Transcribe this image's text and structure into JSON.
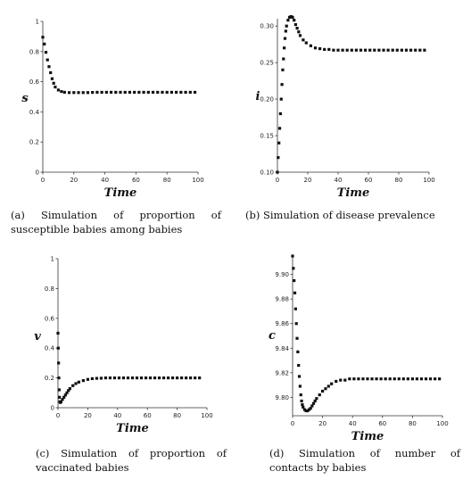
{
  "chart_data": [
    {
      "type": "scatter",
      "caption": "(a) Simulation of proportion of susceptible babies among babies",
      "xlabel": "Time",
      "ylabel": "s",
      "xlim": [
        0,
        100
      ],
      "ylim": [
        0,
        1
      ],
      "xticks": [
        "0",
        "20",
        "40",
        "60",
        "80",
        "100"
      ],
      "yticks": [
        "0",
        "0.2",
        "0.4",
        "0.6",
        "0.8",
        "1"
      ],
      "color": "#111111",
      "series": [
        {
          "x": [
            0,
            1,
            2,
            3,
            4,
            5,
            6,
            7,
            8,
            10,
            12,
            14,
            17,
            20,
            23,
            26,
            29,
            32,
            35,
            38,
            41,
            44,
            47,
            50,
            53,
            56,
            59,
            62,
            65,
            68,
            71,
            74,
            77,
            80,
            83,
            86,
            89,
            92,
            95,
            98
          ],
          "values": [
            0.895,
            0.85,
            0.795,
            0.745,
            0.7,
            0.66,
            0.62,
            0.59,
            0.565,
            0.545,
            0.535,
            0.53,
            0.528,
            0.528,
            0.528,
            0.528,
            0.528,
            0.529,
            0.53,
            0.53,
            0.53,
            0.53,
            0.53,
            0.53,
            0.53,
            0.53,
            0.53,
            0.53,
            0.53,
            0.53,
            0.53,
            0.53,
            0.53,
            0.53,
            0.53,
            0.53,
            0.53,
            0.53,
            0.53,
            0.53
          ]
        }
      ]
    },
    {
      "type": "scatter",
      "caption": "(b) Simulation of disease prevalence",
      "xlabel": "Time",
      "ylabel": "i",
      "xlim": [
        0,
        100
      ],
      "ylim": [
        0.1,
        0.31
      ],
      "xticks": [
        "0",
        "20",
        "40",
        "60",
        "80",
        "100"
      ],
      "yticks": [
        "0.10",
        "0.15",
        "0.20",
        "0.25",
        "0.30"
      ],
      "ytick_values": [
        0.1,
        0.15,
        0.2,
        0.25,
        0.3
      ],
      "color": "#111111",
      "series": [
        {
          "x": [
            0,
            0.5,
            1,
            1.5,
            2,
            2.5,
            3,
            3.5,
            4,
            4.5,
            5,
            5.5,
            6,
            7,
            8,
            9,
            10,
            11,
            12,
            13,
            14,
            15,
            17,
            19,
            22,
            25,
            28,
            31,
            34,
            37,
            40,
            43,
            46,
            49,
            52,
            55,
            58,
            61,
            64,
            67,
            70,
            73,
            76,
            79,
            82,
            85,
            88,
            91,
            94,
            97
          ],
          "values": [
            0.1,
            0.12,
            0.14,
            0.16,
            0.18,
            0.2,
            0.22,
            0.24,
            0.255,
            0.27,
            0.283,
            0.293,
            0.3,
            0.308,
            0.312,
            0.313,
            0.312,
            0.308,
            0.302,
            0.297,
            0.292,
            0.287,
            0.281,
            0.277,
            0.273,
            0.27,
            0.269,
            0.268,
            0.268,
            0.267,
            0.267,
            0.267,
            0.267,
            0.267,
            0.267,
            0.267,
            0.267,
            0.267,
            0.267,
            0.267,
            0.267,
            0.267,
            0.267,
            0.267,
            0.267,
            0.267,
            0.267,
            0.267,
            0.267,
            0.267
          ]
        }
      ]
    },
    {
      "type": "scatter",
      "caption": "(c) Simulation of proportion of vaccinated babies",
      "xlabel": "Time",
      "ylabel": "v",
      "xlim": [
        0,
        100
      ],
      "ylim": [
        0,
        1
      ],
      "xticks": [
        "0",
        "20",
        "40",
        "60",
        "80",
        "100"
      ],
      "yticks": [
        "0",
        "0.2",
        "0.4",
        "0.6",
        "0.8",
        "1"
      ],
      "color": "#111111",
      "series": [
        {
          "x": [
            0,
            0.2,
            0.4,
            0.6,
            0.8,
            1,
            1.3,
            1.6,
            2,
            3,
            4,
            5,
            6,
            7,
            8,
            10,
            12,
            14,
            17,
            20,
            23,
            26,
            29,
            32,
            35,
            38,
            41,
            44,
            47,
            50,
            53,
            56,
            59,
            62,
            65,
            68,
            71,
            74,
            77,
            80,
            83,
            86,
            89,
            92,
            95
          ],
          "values": [
            0.5,
            0.4,
            0.3,
            0.2,
            0.12,
            0.07,
            0.04,
            0.035,
            0.04,
            0.055,
            0.07,
            0.085,
            0.1,
            0.115,
            0.128,
            0.148,
            0.162,
            0.172,
            0.182,
            0.19,
            0.195,
            0.197,
            0.198,
            0.2,
            0.2,
            0.2,
            0.2,
            0.2,
            0.2,
            0.2,
            0.2,
            0.2,
            0.2,
            0.2,
            0.2,
            0.2,
            0.2,
            0.2,
            0.2,
            0.2,
            0.2,
            0.2,
            0.2,
            0.2,
            0.2
          ]
        }
      ]
    },
    {
      "type": "scatter",
      "caption": "(d) Simulation of number of contacts by babies",
      "xlabel": "Time",
      "ylabel": "c",
      "xlim": [
        0,
        100
      ],
      "ylim": [
        9.785,
        9.915
      ],
      "xticks": [
        "0",
        "20",
        "40",
        "60",
        "80",
        "100"
      ],
      "yticks": [
        "9.80",
        "9.82",
        "9.84",
        "9.86",
        "9.88",
        "9.90"
      ],
      "ytick_values": [
        9.8,
        9.82,
        9.84,
        9.86,
        9.88,
        9.9
      ],
      "color": "#111111",
      "series": [
        {
          "x": [
            0,
            0.5,
            1,
            1.5,
            2,
            2.5,
            3,
            3.5,
            4,
            4.5,
            5,
            5.5,
            6,
            6.5,
            7,
            8,
            9,
            10,
            11,
            12,
            13,
            14,
            15,
            16,
            18,
            20,
            22,
            24,
            26,
            29,
            32,
            35,
            38,
            41,
            44,
            47,
            50,
            53,
            56,
            59,
            62,
            65,
            68,
            71,
            74,
            77,
            80,
            83,
            86,
            89,
            92,
            95,
            98
          ],
          "values": [
            9.915,
            9.905,
            9.895,
            9.885,
            9.872,
            9.86,
            9.848,
            9.837,
            9.826,
            9.817,
            9.809,
            9.802,
            9.797,
            9.794,
            9.792,
            9.79,
            9.789,
            9.789,
            9.79,
            9.791,
            9.793,
            9.795,
            9.797,
            9.799,
            9.802,
            9.805,
            9.807,
            9.809,
            9.811,
            9.813,
            9.814,
            9.814,
            9.815,
            9.815,
            9.815,
            9.815,
            9.815,
            9.815,
            9.815,
            9.815,
            9.815,
            9.815,
            9.815,
            9.815,
            9.815,
            9.815,
            9.815,
            9.815,
            9.815,
            9.815,
            9.815,
            9.815,
            9.815
          ]
        }
      ]
    }
  ]
}
